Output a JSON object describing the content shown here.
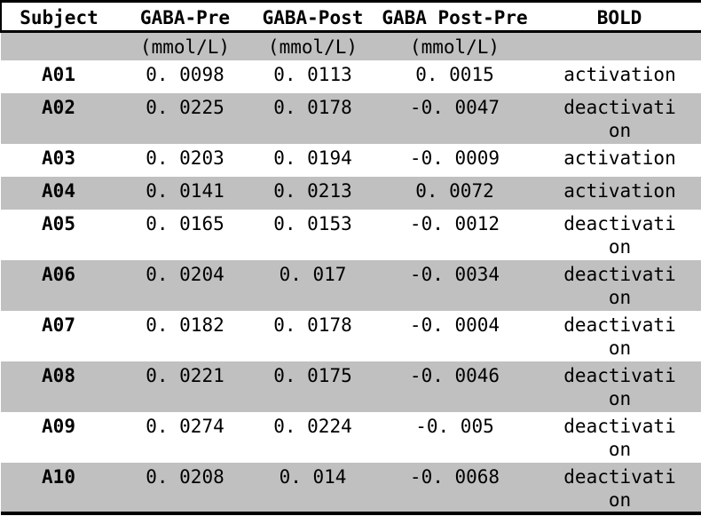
{
  "table": {
    "columns": [
      {
        "key": "subject",
        "label": "Subject",
        "unit": ""
      },
      {
        "key": "gaba_pre",
        "label": "GABA-Pre",
        "unit": "(mmol/L)"
      },
      {
        "key": "gaba_post",
        "label": "GABA-Post",
        "unit": "(mmol/L)"
      },
      {
        "key": "gaba_post_pre",
        "label": "GABA Post-Pre",
        "unit": "(mmol/L)"
      },
      {
        "key": "bold",
        "label": "BOLD",
        "unit": ""
      }
    ],
    "rows": [
      {
        "subject": "A01",
        "gaba_pre": "0. 0098",
        "gaba_post": "0. 0113",
        "gaba_post_pre": "0. 0015",
        "bold": "activation"
      },
      {
        "subject": "A02",
        "gaba_pre": "0. 0225",
        "gaba_post": "0. 0178",
        "gaba_post_pre": "-0. 0047",
        "bold": "deactivation"
      },
      {
        "subject": "A03",
        "gaba_pre": "0. 0203",
        "gaba_post": "0. 0194",
        "gaba_post_pre": "-0. 0009",
        "bold": "activation"
      },
      {
        "subject": "A04",
        "gaba_pre": "0. 0141",
        "gaba_post": "0. 0213",
        "gaba_post_pre": "0. 0072",
        "bold": "activation"
      },
      {
        "subject": "A05",
        "gaba_pre": "0. 0165",
        "gaba_post": "0. 0153",
        "gaba_post_pre": "-0. 0012",
        "bold": "deactivation"
      },
      {
        "subject": "A06",
        "gaba_pre": "0. 0204",
        "gaba_post": "0. 017",
        "gaba_post_pre": "-0. 0034",
        "bold": "deactivation"
      },
      {
        "subject": "A07",
        "gaba_pre": "0. 0182",
        "gaba_post": "0. 0178",
        "gaba_post_pre": "-0. 0004",
        "bold": "deactivation"
      },
      {
        "subject": "A08",
        "gaba_pre": "0. 0221",
        "gaba_post": "0. 0175",
        "gaba_post_pre": "-0. 0046",
        "bold": "deactivation"
      },
      {
        "subject": "A09",
        "gaba_pre": "0. 0274",
        "gaba_post": "0. 0224",
        "gaba_post_pre": "-0. 005",
        "bold": "deactivation"
      },
      {
        "subject": "A10",
        "gaba_pre": "0. 0208",
        "gaba_post": "0. 014",
        "gaba_post_pre": "-0. 0068",
        "bold": "deactivation"
      }
    ]
  },
  "colors": {
    "row_shade": "#c0c0c0",
    "border": "#000000",
    "background": "#ffffff",
    "text": "#000000"
  }
}
